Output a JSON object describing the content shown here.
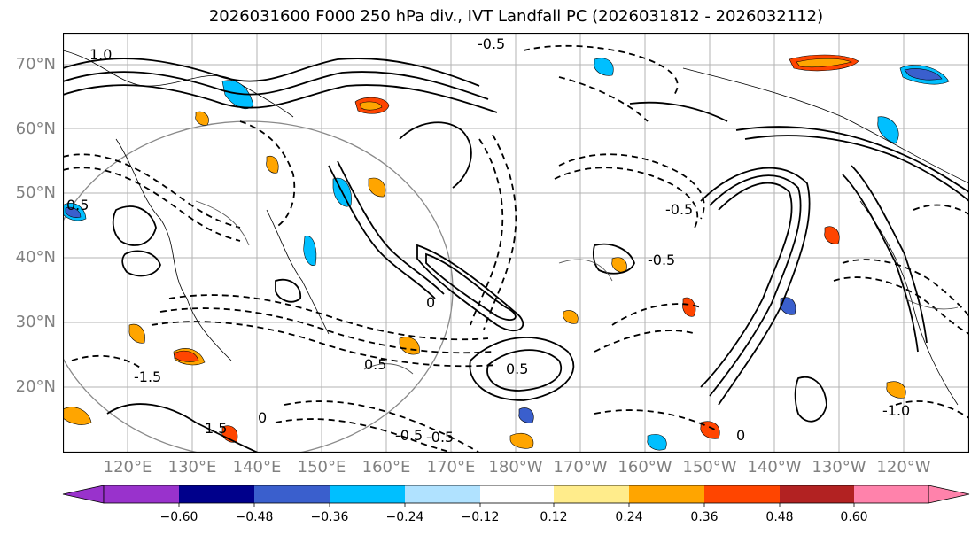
{
  "title": "2026031600 F000 250 hPa div., IVT Landfall PC (2026031812 - 2026032112)",
  "map": {
    "lat_labels": [
      "70°N",
      "60°N",
      "50°N",
      "40°N",
      "30°N",
      "20°N"
    ],
    "lon_labels": [
      "120°E",
      "130°E",
      "140°E",
      "150°E",
      "160°E",
      "170°E",
      "180°W",
      "170°W",
      "160°W",
      "150°W",
      "140°W",
      "130°W",
      "120°W"
    ],
    "contour_labels": [
      {
        "text": "1.0"
      },
      {
        "text": "-0.5"
      },
      {
        "text": "0.5"
      },
      {
        "text": "-1.5"
      },
      {
        "text": "0.5"
      },
      {
        "text": "-0.5"
      },
      {
        "text": "1.5"
      },
      {
        "text": "-0.5"
      },
      {
        "text": "0.5"
      },
      {
        "text": "-0.5"
      },
      {
        "text": "-0.5"
      },
      {
        "text": "-1.0"
      },
      {
        "text": "0"
      },
      {
        "text": "0"
      },
      {
        "text": "0"
      }
    ]
  },
  "colorbar": {
    "ticks": [
      "−0.60",
      "−0.48",
      "−0.36",
      "−0.24",
      "−0.12",
      "0.12",
      "0.24",
      "0.36",
      "0.48",
      "0.60"
    ],
    "colors": [
      "#9932cc",
      "#00008b",
      "#3a5fcd",
      "#00bfff",
      "#b0e2ff",
      "#ffffff",
      "#ffec8b",
      "#ffa500",
      "#ff4500",
      "#b22222",
      "#ff82ab"
    ]
  },
  "colors": {
    "positive_fill": "#ffa500",
    "negative_fill": "#00bfff"
  }
}
